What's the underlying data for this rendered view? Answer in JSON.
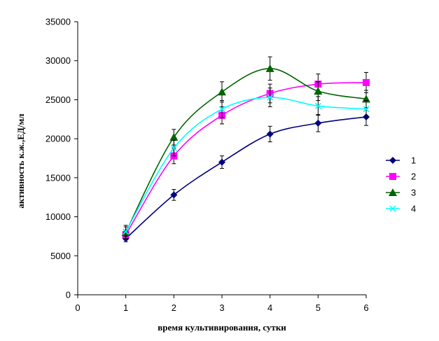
{
  "chart_data": {
    "type": "line",
    "xlabel": "время культивирования, сутки",
    "ylabel": "активность к.ж.,ЕД/мл",
    "xlim": [
      0,
      6
    ],
    "ylim": [
      0,
      35000
    ],
    "x_ticks": [
      "0",
      "1",
      "2",
      "3",
      "4",
      "5",
      "6"
    ],
    "y_ticks": [
      "0",
      "5000",
      "10000",
      "15000",
      "20000",
      "25000",
      "30000",
      "35000"
    ],
    "grid": false,
    "legend_position": "right",
    "x": [
      1,
      2,
      3,
      4,
      5,
      6
    ],
    "series": [
      {
        "name": "1",
        "color": "#000080",
        "marker": "diamond",
        "values": [
          7200,
          12800,
          17000,
          20600,
          22000,
          22800
        ],
        "errors": [
          400,
          700,
          800,
          1000,
          1100,
          1100
        ]
      },
      {
        "name": "2",
        "color": "#FF00FF",
        "marker": "square",
        "values": [
          7700,
          17800,
          23000,
          25800,
          27000,
          27200
        ],
        "errors": [
          500,
          1000,
          1100,
          1200,
          1300,
          1300
        ]
      },
      {
        "name": "3",
        "color": "#006400",
        "marker": "triangle",
        "values": [
          8000,
          20200,
          26000,
          29000,
          26100,
          25100
        ],
        "errors": [
          900,
          1000,
          1300,
          1500,
          1200,
          1100
        ]
      },
      {
        "name": "4",
        "color": "#00FFFF",
        "marker": "x",
        "values": [
          8100,
          18800,
          23800,
          25300,
          24200,
          23800
        ],
        "errors": [
          600,
          1000,
          1100,
          1200,
          1200,
          1100
        ]
      }
    ]
  }
}
